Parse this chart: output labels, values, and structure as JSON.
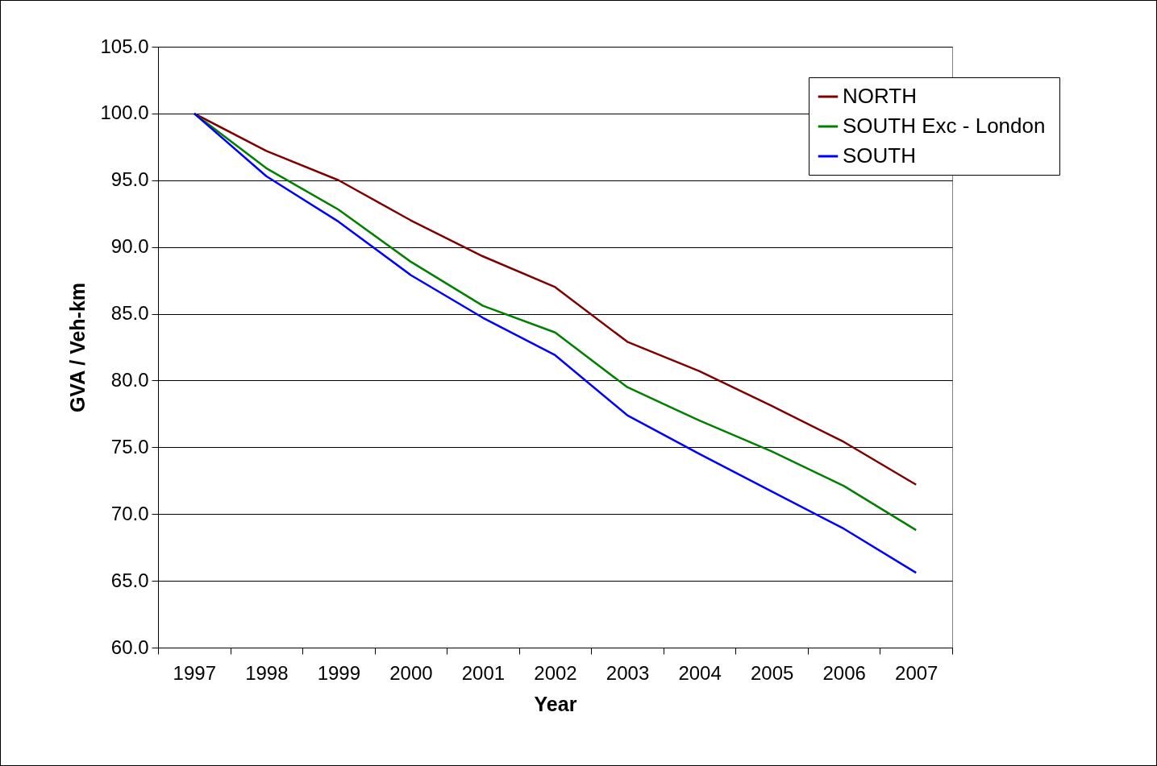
{
  "chart_data": {
    "type": "line",
    "xlabel": "Year",
    "ylabel": "GVA / Veh-km",
    "categories": [
      "1997",
      "1998",
      "1999",
      "2000",
      "2001",
      "2002",
      "2003",
      "2004",
      "2005",
      "2006",
      "2007"
    ],
    "series": [
      {
        "name": "NORTH",
        "color": "#800000",
        "values": [
          100.0,
          97.2,
          95.0,
          92.0,
          89.3,
          87.0,
          82.9,
          80.7,
          78.1,
          75.4,
          72.2
        ]
      },
      {
        "name": "SOUTH  Exc - London",
        "color": "#008000",
        "values": [
          100.0,
          95.9,
          92.8,
          88.9,
          85.6,
          83.6,
          79.5,
          77.0,
          74.7,
          72.1,
          68.8
        ]
      },
      {
        "name": "SOUTH",
        "color": "#0000ff",
        "values": [
          100.0,
          95.3,
          91.9,
          87.9,
          84.7,
          81.9,
          77.4,
          74.5,
          71.7,
          68.9,
          65.6
        ]
      }
    ],
    "ylim": [
      60,
      105
    ],
    "yticks": [
      {
        "value": 60,
        "label": "60.0"
      },
      {
        "value": 65,
        "label": "65.0"
      },
      {
        "value": 70,
        "label": "70.0"
      },
      {
        "value": 75,
        "label": "75.0"
      },
      {
        "value": 80,
        "label": "80.0"
      },
      {
        "value": 85,
        "label": "85.0"
      },
      {
        "value": 90,
        "label": "90.0"
      },
      {
        "value": 95,
        "label": "95.0"
      },
      {
        "value": 100,
        "label": "100.0"
      },
      {
        "value": 105,
        "label": "105.0"
      }
    ],
    "grid": "y",
    "legend": "top right",
    "marker": "none",
    "line_style": "solid"
  }
}
